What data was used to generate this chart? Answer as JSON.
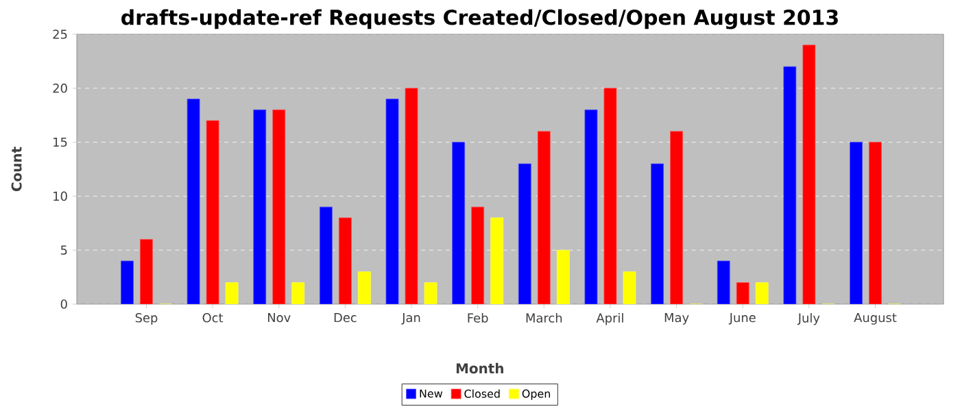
{
  "chart_data": {
    "type": "bar",
    "title": "drafts-update-ref Requests Created/Closed/Open August 2013",
    "xlabel": "Month",
    "ylabel": "Count",
    "categories": [
      "Sep",
      "Oct",
      "Nov",
      "Dec",
      "Jan",
      "Feb",
      "March",
      "April",
      "May",
      "June",
      "July",
      "August"
    ],
    "series": [
      {
        "name": "New",
        "color": "#0000ff",
        "values": [
          4,
          19,
          18,
          9,
          19,
          15,
          13,
          18,
          13,
          4,
          22,
          15
        ]
      },
      {
        "name": "Closed",
        "color": "#ff0000",
        "values": [
          6,
          17,
          18,
          8,
          20,
          9,
          16,
          20,
          16,
          2,
          24,
          15
        ]
      },
      {
        "name": "Open",
        "color": "#ffff00",
        "values": [
          0,
          2,
          2,
          3,
          2,
          8,
          5,
          3,
          0,
          2,
          0,
          0
        ]
      }
    ],
    "ylim": [
      0,
      25
    ],
    "yticks": [
      0,
      5,
      10,
      15,
      20,
      25
    ],
    "grid": "y",
    "legend": "bottom"
  }
}
